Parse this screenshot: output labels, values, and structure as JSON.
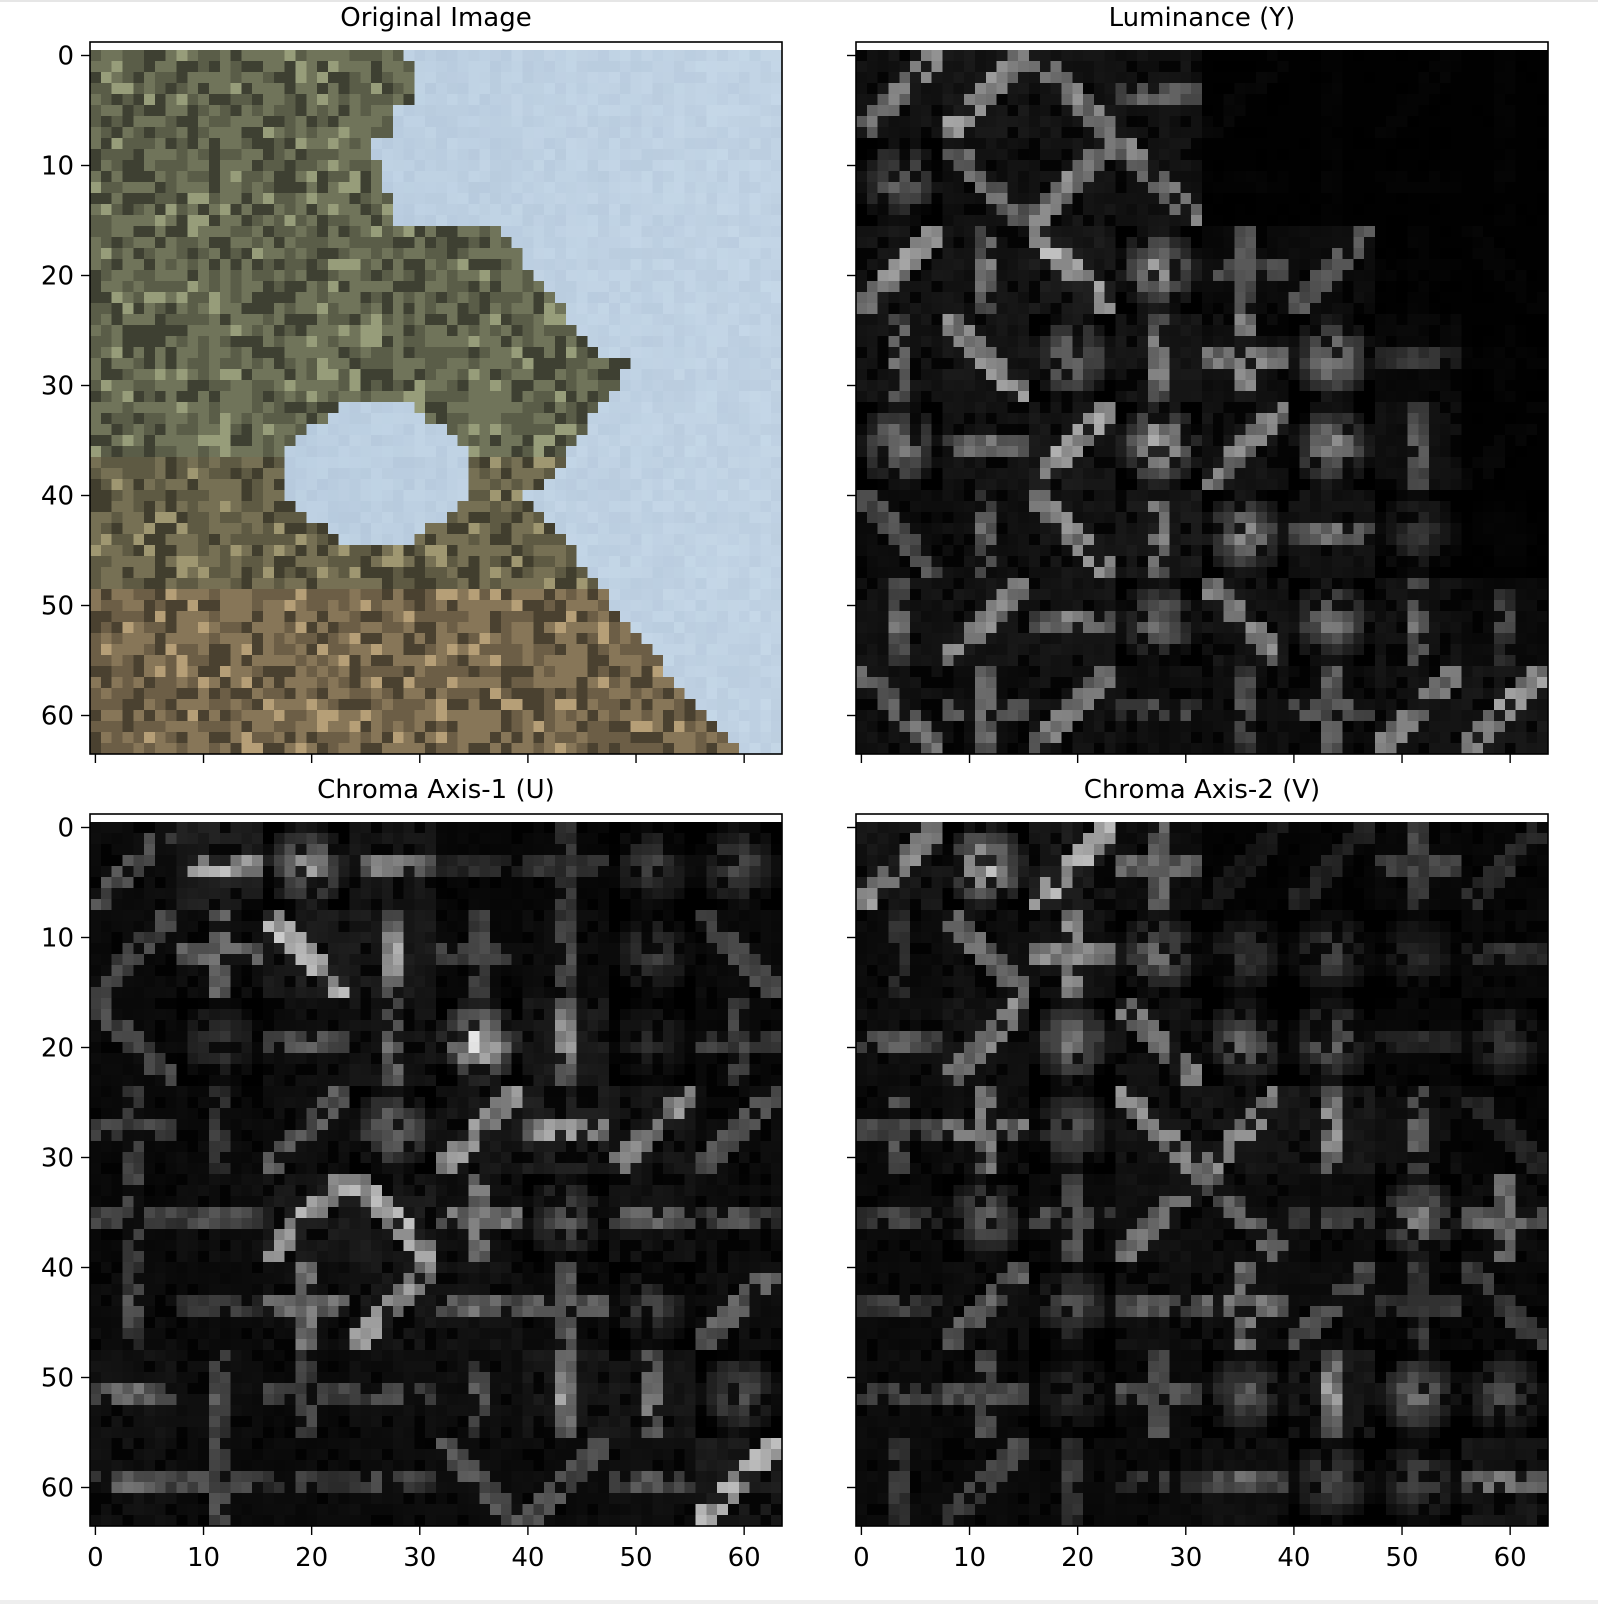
{
  "figure": {
    "layout": "2x2 grid of image subplots with shared x and y axes",
    "background": "#ffffff"
  },
  "chart_data": [
    {
      "type": "heatmap",
      "title": "Original Image",
      "description": "64x64 photograph crop: olive/green tree foliage on the left and bottom, pale blue sky on the upper right",
      "colors": {
        "foliage": "#7a7a55",
        "dark_foliage": "#3f4330",
        "sky": "#b7cde0",
        "ground": "#8a7a5c"
      },
      "xlim": [
        -0.5,
        63.5
      ],
      "ylim": [
        63.5,
        -0.5
      ],
      "xticks": [
        0,
        10,
        20,
        30,
        40,
        50,
        60
      ],
      "yticks": [
        0,
        10,
        20,
        30,
        40,
        50,
        60
      ],
      "show_xticklabels": false,
      "show_yticklabels": true
    },
    {
      "type": "heatmap",
      "title": "Luminance (Y)",
      "description": "8x8 grid of 8x8 DCT coefficient magnitude blocks, grayscale; strong blocks where foliage is, dark where the sky is",
      "colormap": "gray",
      "xlim": [
        -0.5,
        63.5
      ],
      "ylim": [
        63.5,
        -0.5
      ],
      "xticks": [
        0,
        10,
        20,
        30,
        40,
        50,
        60
      ],
      "yticks": [
        0,
        10,
        20,
        30,
        40,
        50,
        60
      ],
      "show_xticklabels": false,
      "show_yticklabels": false
    },
    {
      "type": "heatmap",
      "title": "Chroma Axis-1 (U)",
      "description": "8x8 grid of 8x8 DCT coefficient magnitude blocks for chroma U, grayscale",
      "colormap": "gray",
      "xlim": [
        -0.5,
        63.5
      ],
      "ylim": [
        63.5,
        -0.5
      ],
      "xticks": [
        0,
        10,
        20,
        30,
        40,
        50,
        60
      ],
      "yticks": [
        0,
        10,
        20,
        30,
        40,
        50,
        60
      ],
      "show_xticklabels": true,
      "show_yticklabels": true
    },
    {
      "type": "heatmap",
      "title": "Chroma Axis-2 (V)",
      "description": "8x8 grid of 8x8 DCT coefficient magnitude blocks for chroma V, grayscale",
      "colormap": "gray",
      "xlim": [
        -0.5,
        63.5
      ],
      "ylim": [
        63.5,
        -0.5
      ],
      "xticks": [
        0,
        10,
        20,
        30,
        40,
        50,
        60
      ],
      "yticks": [
        0,
        10,
        20,
        30,
        40,
        50,
        60
      ],
      "show_xticklabels": true,
      "show_yticklabels": false
    }
  ]
}
